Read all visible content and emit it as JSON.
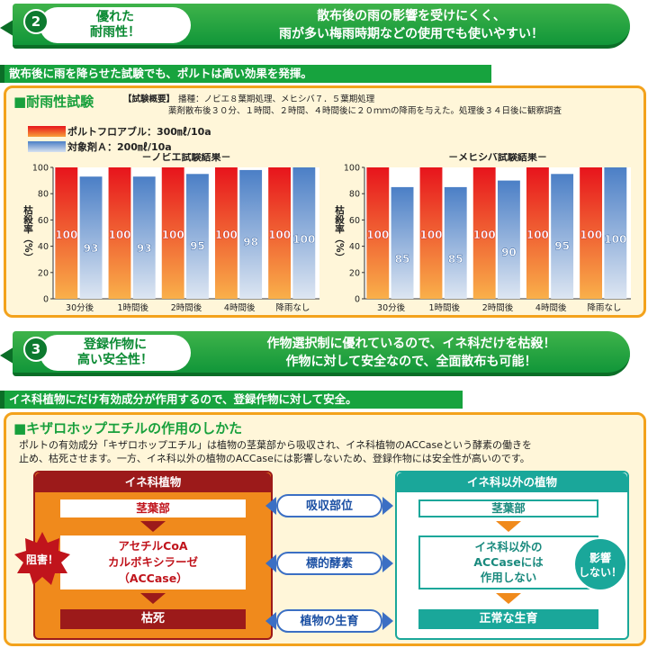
{
  "section2": {
    "number": "2",
    "tag_line1": "優れた",
    "tag_line2": "耐雨性！",
    "headline_line1": "散布後の雨の影響を受けにくく、",
    "headline_line2": "雨が多い梅雨時期などの使用でも使いやすい！",
    "strip": "散布後に雨を降らせた試験でも、ポルトは高い効果を発揮。",
    "panel_title": "■耐雨性試験",
    "overview_label": "【試験概要】",
    "overview_line1": "播種：ノビエ８葉期処理、メヒシバ７．５葉期処理",
    "overview_line2": "薬剤散布後３０分、１時間、２時間、４時間後に２０ｍｍの降雨を与えた。処理後３４日後に観察調査",
    "legend": [
      {
        "label": "ポルトフロアブル：300㎖/10a",
        "color": "#e7141c"
      },
      {
        "label": "対象剤Ａ：200㎖/10a",
        "color": "#4b7fc6"
      }
    ],
    "ylabel": "枯殺率（%）"
  },
  "chart_data": [
    {
      "type": "bar",
      "title": "－ノビエ試験結果－",
      "ylabel": "枯殺率（%）",
      "ylim": [
        0,
        100
      ],
      "yticks": [
        0,
        20,
        40,
        60,
        80,
        100
      ],
      "categories": [
        "30分後",
        "1時間後",
        "2時間後",
        "4時間後",
        "降雨なし"
      ],
      "series": [
        {
          "name": "ポルトフロアブル：300㎖/10a",
          "values": [
            100,
            100,
            100,
            100,
            100
          ]
        },
        {
          "name": "対象剤Ａ：200㎖/10a",
          "values": [
            93,
            93,
            95,
            98,
            100
          ]
        }
      ]
    },
    {
      "type": "bar",
      "title": "－メヒシバ試験結果－",
      "ylabel": "枯殺率（%）",
      "ylim": [
        0,
        100
      ],
      "yticks": [
        0,
        20,
        40,
        60,
        80,
        100
      ],
      "categories": [
        "30分後",
        "1時間後",
        "2時間後",
        "4時間後",
        "降雨なし"
      ],
      "series": [
        {
          "name": "ポルトフロアブル：300㎖/10a",
          "values": [
            100,
            100,
            100,
            100,
            100
          ]
        },
        {
          "name": "対象剤Ａ：200㎖/10a",
          "values": [
            85,
            85,
            90,
            95,
            100
          ]
        }
      ]
    }
  ],
  "section3": {
    "number": "3",
    "tag_line1": "登録作物に",
    "tag_line2": "高い安全性！",
    "headline_line1": "作物選択制に優れているので、イネ科だけを枯殺！",
    "headline_line2": "作物に対して安全なので、全面散布も可能！",
    "strip": "イネ科植物にだけ有効成分が作用するので、登録作物に対して安全。",
    "panel_title": "■キザロホップエチルの作用のしかた",
    "desc_line1": "ポルトの有効成分「キザロホップエチル」は植物の茎葉部から吸収され、イネ科植物のACCaseという酵素の働きを",
    "desc_line2": "止め、枯死させます。一方、イネ科以外の植物のACCaseには影響しないため、登録作物には安全性が高いのです。",
    "left_col": {
      "head": "イネ科植物",
      "box1": "茎葉部",
      "box2_line1": "アセチルCoA",
      "box2_line2": "カルボキシラーゼ",
      "box2_line3": "（ACCase）",
      "box3": "枯死",
      "badge": "阻害！"
    },
    "right_col": {
      "head": "イネ科以外の植物",
      "box1": "茎葉部",
      "box2_line1": "イネ科以外の",
      "box2_line2": "ACCaseには",
      "box2_line3": "作用しない",
      "box3": "正常な生育",
      "badge_line1": "影響",
      "badge_line2": "しない！"
    },
    "middle": {
      "label1": "吸収部位",
      "label2": "標的酵素",
      "label3": "植物の生育"
    }
  },
  "colors": {
    "green": "#17a33e",
    "orange_border": "#f3a21c",
    "panel_bg": "#fff6d9",
    "red_bar": "#e7141c",
    "blue_bar": "#4b7fc6",
    "dark_red": "#9c1a1a",
    "teal": "#1aa79a"
  }
}
